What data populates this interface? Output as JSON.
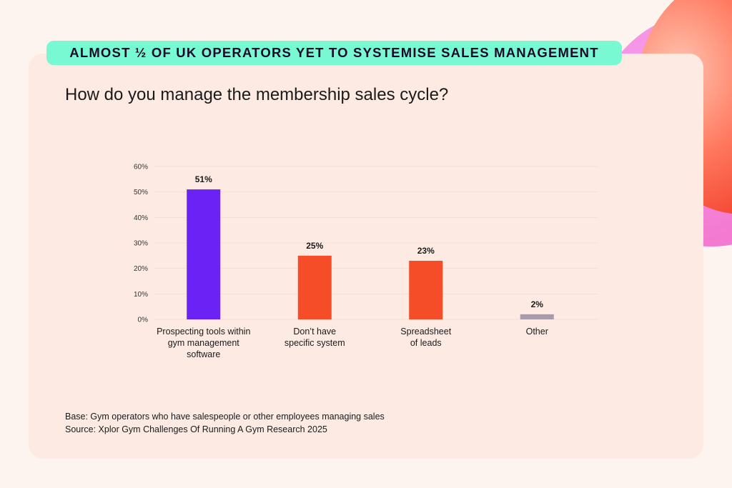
{
  "banner": "ALMOST ½ OF UK OPERATORS YET TO SYSTEMISE SALES MANAGEMENT",
  "footnotes": {
    "base": "Base: Gym operators who have salespeople or other employees managing sales",
    "source": "Source: Xplor Gym Challenges Of Running A Gym Research 2025"
  },
  "chart_data": {
    "type": "bar",
    "title": "How do you manage the membership sales cycle?",
    "categories": [
      [
        "Prospecting tools within",
        "gym management",
        "software"
      ],
      [
        "Don’t have",
        "specific system"
      ],
      [
        "Spreadsheet",
        "of leads"
      ],
      [
        "Other"
      ]
    ],
    "values": [
      51,
      25,
      23,
      2
    ],
    "data_labels": [
      "51%",
      "25%",
      "23%",
      "2%"
    ],
    "colors": [
      "#6b22f5",
      "#f44d27",
      "#f44d27",
      "#a99aac"
    ],
    "ylim": [
      0,
      60
    ],
    "yticks": [
      "0%",
      "10%",
      "20%",
      "30%",
      "40%",
      "50%",
      "60%"
    ],
    "grid": true,
    "xlabel": "",
    "ylabel": ""
  }
}
